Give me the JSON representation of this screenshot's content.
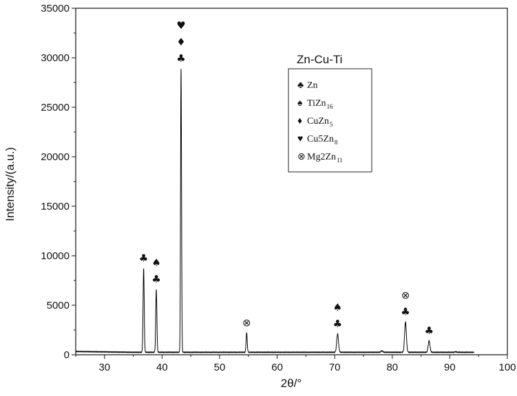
{
  "chart_data": {
    "type": "line",
    "xlabel": "2θ/°",
    "ylabel": "Intensity/(a.u.)",
    "xlim": [
      25,
      100
    ],
    "ylim": [
      0,
      35000
    ],
    "x_ticks": [
      "30",
      "40",
      "50",
      "60",
      "70",
      "80",
      "90",
      "100"
    ],
    "y_ticks": [
      "0",
      "5000",
      "10000",
      "15000",
      "20000",
      "25000",
      "30000",
      "35000"
    ],
    "series": [
      {
        "baseline": 250,
        "peaks": [
          {
            "x": 36.8,
            "y": 8700
          },
          {
            "x": 39.0,
            "y": 6600
          },
          {
            "x": 43.3,
            "y": 28900
          },
          {
            "x": 54.7,
            "y": 2200
          },
          {
            "x": 70.5,
            "y": 2100
          },
          {
            "x": 78.2,
            "y": 400
          },
          {
            "x": 82.3,
            "y": 3300
          },
          {
            "x": 86.4,
            "y": 1400
          },
          {
            "x": 91.0,
            "y": 300
          }
        ]
      }
    ],
    "legend": {
      "title": "Zn-Cu-Ti",
      "position": "top-right",
      "entries": [
        {
          "symbol": "♣",
          "name": "Zn",
          "sub": ""
        },
        {
          "symbol": "♠",
          "name": "TiZn",
          "sub": "16"
        },
        {
          "symbol": "♦",
          "name": "CuZn",
          "sub": "5"
        },
        {
          "symbol": "♥",
          "name": "Cu5Zn",
          "sub": "8"
        },
        {
          "symbol": "⊗",
          "name": "Mg2Zn",
          "sub": "11"
        }
      ]
    },
    "peak_markers": [
      {
        "x": 36.8,
        "y": 8700,
        "symbols": [
          "♣"
        ]
      },
      {
        "x": 39.0,
        "y": 6600,
        "symbols": [
          "♠",
          "♣"
        ]
      },
      {
        "x": 43.3,
        "y": 28900,
        "symbols": [
          "♥",
          "♦",
          "♣"
        ]
      },
      {
        "x": 54.7,
        "y": 2200,
        "symbols": [
          "⊗"
        ]
      },
      {
        "x": 70.5,
        "y": 2100,
        "symbols": [
          "♠",
          "♣"
        ]
      },
      {
        "x": 82.3,
        "y": 3300,
        "symbols": [
          "⊗",
          "♣"
        ]
      },
      {
        "x": 86.4,
        "y": 1400,
        "symbols": [
          "♣"
        ]
      }
    ],
    "grid": false
  }
}
